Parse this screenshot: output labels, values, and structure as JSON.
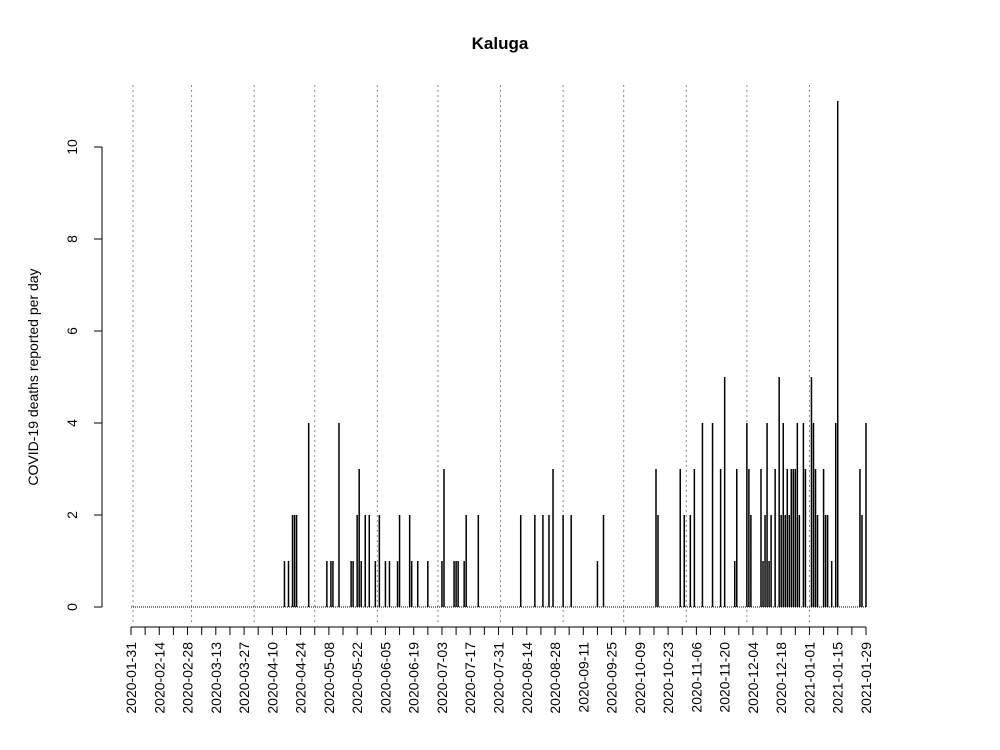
{
  "chart_data": {
    "type": "bar",
    "title": "Kaluga",
    "y_label": "COVID-19 deaths reported per day",
    "color": "#000000",
    "xlim": [
      "2020-01-31",
      "2021-01-29"
    ],
    "xticks": [
      "2020-01-31",
      "2020-02-14",
      "2020-02-28",
      "2020-03-13",
      "2020-03-27",
      "2020-04-10",
      "2020-04-24",
      "2020-05-08",
      "2020-05-22",
      "2020-06-05",
      "2020-06-19",
      "2020-07-03",
      "2020-07-17",
      "2020-07-31",
      "2020-08-14",
      "2020-08-28",
      "2020-09-11",
      "2020-09-25",
      "2020-10-09",
      "2020-10-23",
      "2020-11-06",
      "2020-11-20",
      "2020-12-04",
      "2020-12-18",
      "2021-01-01",
      "2021-01-15",
      "2021-01-29"
    ],
    "ylim": [
      0,
      11
    ],
    "yticks": [
      0,
      2,
      4,
      6,
      8,
      10
    ],
    "x": [
      "2020-01-31",
      "2020-02-01",
      "2020-02-02",
      "2020-02-03",
      "2020-02-04",
      "2020-02-05",
      "2020-02-06",
      "2020-02-07",
      "2020-02-08",
      "2020-02-09",
      "2020-02-10",
      "2020-02-11",
      "2020-02-12",
      "2020-02-13",
      "2020-02-14",
      "2020-02-15",
      "2020-02-16",
      "2020-02-17",
      "2020-02-18",
      "2020-02-19",
      "2020-02-20",
      "2020-02-21",
      "2020-02-22",
      "2020-02-23",
      "2020-02-24",
      "2020-02-25",
      "2020-02-26",
      "2020-02-27",
      "2020-02-28",
      "2020-02-29",
      "2020-03-01",
      "2020-03-02",
      "2020-03-03",
      "2020-03-04",
      "2020-03-05",
      "2020-03-06",
      "2020-03-07",
      "2020-03-08",
      "2020-03-09",
      "2020-03-10",
      "2020-03-11",
      "2020-03-12",
      "2020-03-13",
      "2020-03-14",
      "2020-03-15",
      "2020-03-16",
      "2020-03-17",
      "2020-03-18",
      "2020-03-19",
      "2020-03-20",
      "2020-03-21",
      "2020-03-22",
      "2020-03-23",
      "2020-03-24",
      "2020-03-25",
      "2020-03-26",
      "2020-03-27",
      "2020-03-28",
      "2020-03-29",
      "2020-03-30",
      "2020-03-31",
      "2020-04-01",
      "2020-04-02",
      "2020-04-03",
      "2020-04-04",
      "2020-04-05",
      "2020-04-06",
      "2020-04-07",
      "2020-04-08",
      "2020-04-09",
      "2020-04-10",
      "2020-04-11",
      "2020-04-12",
      "2020-04-13",
      "2020-04-14",
      "2020-04-15",
      "2020-04-16",
      "2020-04-17",
      "2020-04-18",
      "2020-04-19",
      "2020-04-20",
      "2020-04-21",
      "2020-04-22",
      "2020-04-23",
      "2020-04-24",
      "2020-04-25",
      "2020-04-26",
      "2020-04-27",
      "2020-04-28",
      "2020-04-29",
      "2020-04-30",
      "2020-05-01",
      "2020-05-02",
      "2020-05-03",
      "2020-05-04",
      "2020-05-05",
      "2020-05-06",
      "2020-05-07",
      "2020-05-08",
      "2020-05-09",
      "2020-05-10",
      "2020-05-11",
      "2020-05-12",
      "2020-05-13",
      "2020-05-14",
      "2020-05-15",
      "2020-05-16",
      "2020-05-17",
      "2020-05-18",
      "2020-05-19",
      "2020-05-20",
      "2020-05-21",
      "2020-05-22",
      "2020-05-23",
      "2020-05-24",
      "2020-05-25",
      "2020-05-26",
      "2020-05-27",
      "2020-05-28",
      "2020-05-29",
      "2020-05-30",
      "2020-05-31",
      "2020-06-01",
      "2020-06-02",
      "2020-06-03",
      "2020-06-04",
      "2020-06-05",
      "2020-06-06",
      "2020-06-07",
      "2020-06-08",
      "2020-06-09",
      "2020-06-10",
      "2020-06-11",
      "2020-06-12",
      "2020-06-13",
      "2020-06-14",
      "2020-06-15",
      "2020-06-16",
      "2020-06-17",
      "2020-06-18",
      "2020-06-19",
      "2020-06-20",
      "2020-06-21",
      "2020-06-22",
      "2020-06-23",
      "2020-06-24",
      "2020-06-25",
      "2020-06-26",
      "2020-06-27",
      "2020-06-28",
      "2020-06-29",
      "2020-06-30",
      "2020-07-01",
      "2020-07-02",
      "2020-07-03",
      "2020-07-04",
      "2020-07-05",
      "2020-07-06",
      "2020-07-07",
      "2020-07-08",
      "2020-07-09",
      "2020-07-10",
      "2020-07-11",
      "2020-07-12",
      "2020-07-13",
      "2020-07-14",
      "2020-07-15",
      "2020-07-16",
      "2020-07-17",
      "2020-07-18",
      "2020-07-19",
      "2020-07-20",
      "2020-07-21",
      "2020-07-22",
      "2020-07-23",
      "2020-07-24",
      "2020-07-25",
      "2020-07-26",
      "2020-07-27",
      "2020-07-28",
      "2020-07-29",
      "2020-07-30",
      "2020-07-31",
      "2020-08-01",
      "2020-08-02",
      "2020-08-03",
      "2020-08-04",
      "2020-08-05",
      "2020-08-06",
      "2020-08-07",
      "2020-08-08",
      "2020-08-09",
      "2020-08-10",
      "2020-08-11",
      "2020-08-12",
      "2020-08-13",
      "2020-08-14",
      "2020-08-15",
      "2020-08-16",
      "2020-08-17",
      "2020-08-18",
      "2020-08-19",
      "2020-08-20",
      "2020-08-21",
      "2020-08-22",
      "2020-08-23",
      "2020-08-24",
      "2020-08-25",
      "2020-08-26",
      "2020-08-27",
      "2020-08-28",
      "2020-08-29",
      "2020-08-30",
      "2020-08-31",
      "2020-09-01",
      "2020-09-02",
      "2020-09-03",
      "2020-09-04",
      "2020-09-05",
      "2020-09-06",
      "2020-09-07",
      "2020-09-08",
      "2020-09-09",
      "2020-09-10",
      "2020-09-11",
      "2020-09-12",
      "2020-09-13",
      "2020-09-14",
      "2020-09-15",
      "2020-09-16",
      "2020-09-17",
      "2020-09-18",
      "2020-09-19",
      "2020-09-20",
      "2020-09-21",
      "2020-09-22",
      "2020-09-23",
      "2020-09-24",
      "2020-09-25",
      "2020-09-26",
      "2020-09-27",
      "2020-09-28",
      "2020-09-29",
      "2020-09-30",
      "2020-10-01",
      "2020-10-02",
      "2020-10-03",
      "2020-10-04",
      "2020-10-05",
      "2020-10-06",
      "2020-10-07",
      "2020-10-08",
      "2020-10-09",
      "2020-10-10",
      "2020-10-11",
      "2020-10-12",
      "2020-10-13",
      "2020-10-14",
      "2020-10-15",
      "2020-10-16",
      "2020-10-17",
      "2020-10-18",
      "2020-10-19",
      "2020-10-20",
      "2020-10-21",
      "2020-10-22",
      "2020-10-23",
      "2020-10-24",
      "2020-10-25",
      "2020-10-26",
      "2020-10-27",
      "2020-10-28",
      "2020-10-29",
      "2020-10-30",
      "2020-10-31",
      "2020-11-01",
      "2020-11-02",
      "2020-11-03",
      "2020-11-04",
      "2020-11-05",
      "2020-11-06",
      "2020-11-07",
      "2020-11-08",
      "2020-11-09",
      "2020-11-10",
      "2020-11-11",
      "2020-11-12",
      "2020-11-13",
      "2020-11-14",
      "2020-11-15",
      "2020-11-16",
      "2020-11-17",
      "2020-11-18",
      "2020-11-19",
      "2020-11-20",
      "2020-11-21",
      "2020-11-22",
      "2020-11-23",
      "2020-11-24",
      "2020-11-25",
      "2020-11-26",
      "2020-11-27",
      "2020-11-28",
      "2020-11-29",
      "2020-11-30",
      "2020-12-01",
      "2020-12-02",
      "2020-12-03",
      "2020-12-04",
      "2020-12-05",
      "2020-12-06",
      "2020-12-07",
      "2020-12-08",
      "2020-12-09",
      "2020-12-10",
      "2020-12-11",
      "2020-12-12",
      "2020-12-13",
      "2020-12-14",
      "2020-12-15",
      "2020-12-16",
      "2020-12-17",
      "2020-12-18",
      "2020-12-19",
      "2020-12-20",
      "2020-12-21",
      "2020-12-22",
      "2020-12-23",
      "2020-12-24",
      "2020-12-25",
      "2020-12-26",
      "2020-12-27",
      "2020-12-28",
      "2020-12-29",
      "2020-12-30",
      "2020-12-31",
      "2021-01-01",
      "2021-01-02",
      "2021-01-03",
      "2021-01-04",
      "2021-01-05",
      "2021-01-06",
      "2021-01-07",
      "2021-01-08",
      "2021-01-09",
      "2021-01-10",
      "2021-01-11",
      "2021-01-12",
      "2021-01-13",
      "2021-01-14",
      "2021-01-15",
      "2021-01-16",
      "2021-01-17",
      "2021-01-18",
      "2021-01-19",
      "2021-01-20",
      "2021-01-21",
      "2021-01-22",
      "2021-01-23",
      "2021-01-24",
      "2021-01-25",
      "2021-01-26",
      "2021-01-27",
      "2021-01-28",
      "2021-01-29"
    ],
    "values": [
      0,
      0,
      0,
      0,
      0,
      0,
      0,
      0,
      0,
      0,
      0,
      0,
      0,
      0,
      0,
      0,
      0,
      0,
      0,
      0,
      0,
      0,
      0,
      0,
      0,
      0,
      0,
      0,
      0,
      0,
      0,
      0,
      0,
      0,
      0,
      0,
      0,
      0,
      0,
      0,
      0,
      0,
      0,
      0,
      0,
      0,
      0,
      0,
      0,
      0,
      0,
      0,
      0,
      0,
      0,
      0,
      0,
      0,
      0,
      0,
      0,
      0,
      0,
      0,
      0,
      0,
      0,
      0,
      0,
      0,
      0,
      0,
      0,
      0,
      0,
      0,
      1,
      0,
      1,
      0,
      2,
      2,
      2,
      0,
      0,
      0,
      0,
      0,
      4,
      0,
      0,
      0,
      0,
      0,
      0,
      0,
      0,
      1,
      0,
      1,
      1,
      0,
      0,
      4,
      0,
      0,
      0,
      0,
      0,
      1,
      1,
      0,
      2,
      3,
      1,
      0,
      2,
      0,
      2,
      0,
      0,
      1,
      0,
      2,
      0,
      0,
      1,
      0,
      1,
      0,
      0,
      0,
      1,
      2,
      0,
      0,
      0,
      0,
      2,
      1,
      0,
      0,
      1,
      0,
      0,
      0,
      0,
      1,
      0,
      0,
      0,
      0,
      0,
      0,
      1,
      3,
      0,
      0,
      0,
      0,
      1,
      1,
      1,
      0,
      0,
      1,
      2,
      0,
      0,
      0,
      0,
      0,
      2,
      0,
      0,
      0,
      0,
      0,
      0,
      0,
      0,
      0,
      0,
      0,
      0,
      0,
      0,
      0,
      0,
      0,
      0,
      0,
      0,
      2,
      0,
      0,
      0,
      0,
      0,
      0,
      2,
      0,
      0,
      0,
      2,
      0,
      0,
      2,
      0,
      3,
      0,
      0,
      0,
      0,
      2,
      0,
      0,
      0,
      2,
      0,
      0,
      0,
      0,
      0,
      0,
      0,
      0,
      0,
      0,
      0,
      0,
      1,
      0,
      0,
      2,
      0,
      0,
      0,
      0,
      0,
      0,
      0,
      0,
      0,
      0,
      0,
      0,
      0,
      0,
      0,
      0,
      0,
      0,
      0,
      0,
      0,
      0,
      0,
      0,
      0,
      3,
      2,
      0,
      0,
      0,
      0,
      0,
      0,
      0,
      0,
      0,
      0,
      3,
      0,
      2,
      0,
      0,
      2,
      0,
      3,
      0,
      0,
      0,
      4,
      0,
      0,
      0,
      0,
      4,
      0,
      0,
      0,
      3,
      0,
      5,
      0,
      0,
      0,
      0,
      1,
      3,
      0,
      0,
      0,
      0,
      4,
      3,
      2,
      0,
      0,
      0,
      0,
      3,
      1,
      2,
      4,
      1,
      2,
      0,
      3,
      0,
      5,
      2,
      4,
      2,
      3,
      2,
      3,
      3,
      3,
      4,
      2,
      0,
      4,
      3,
      0,
      0,
      5,
      4,
      3,
      2,
      0,
      0,
      3,
      2,
      2,
      0,
      1,
      0,
      4,
      11,
      0,
      0,
      0,
      0,
      0,
      0,
      0,
      0,
      0,
      0,
      3,
      2,
      0,
      4
    ]
  }
}
